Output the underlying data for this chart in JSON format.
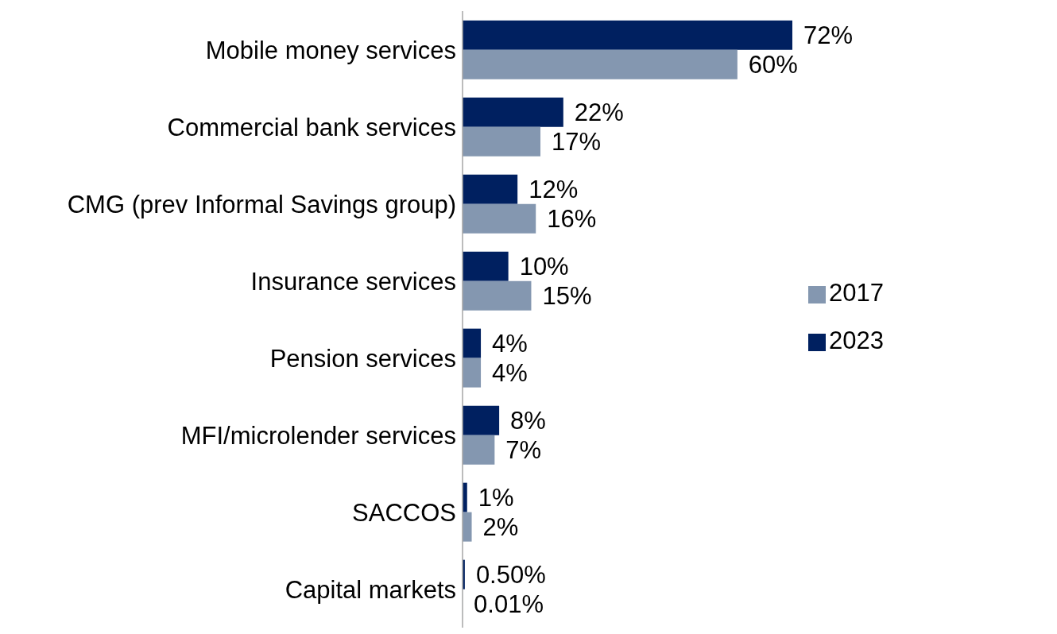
{
  "chart_data": {
    "type": "bar",
    "orientation": "horizontal",
    "categories": [
      "Mobile money services",
      "Commercial bank services",
      "CMG (prev Informal Savings group)",
      "Insurance services",
      "Pension services",
      "MFI/microlender services",
      "SACCOS",
      "Capital markets"
    ],
    "series": [
      {
        "name": "2023",
        "color": "#002060",
        "values": [
          72,
          22,
          12,
          10,
          4,
          8,
          1,
          0.5
        ],
        "value_labels": [
          "72%",
          "22%",
          "12%",
          "10%",
          "4%",
          "8%",
          "1%",
          "0.50%"
        ]
      },
      {
        "name": "2017",
        "color": "#8497b0",
        "values": [
          60,
          17,
          16,
          15,
          4,
          7,
          2,
          0.01
        ],
        "value_labels": [
          "60%",
          "17%",
          "16%",
          "15%",
          "4%",
          "7%",
          "2%",
          "0.01%"
        ]
      }
    ],
    "legend": "right",
    "grid": false
  }
}
